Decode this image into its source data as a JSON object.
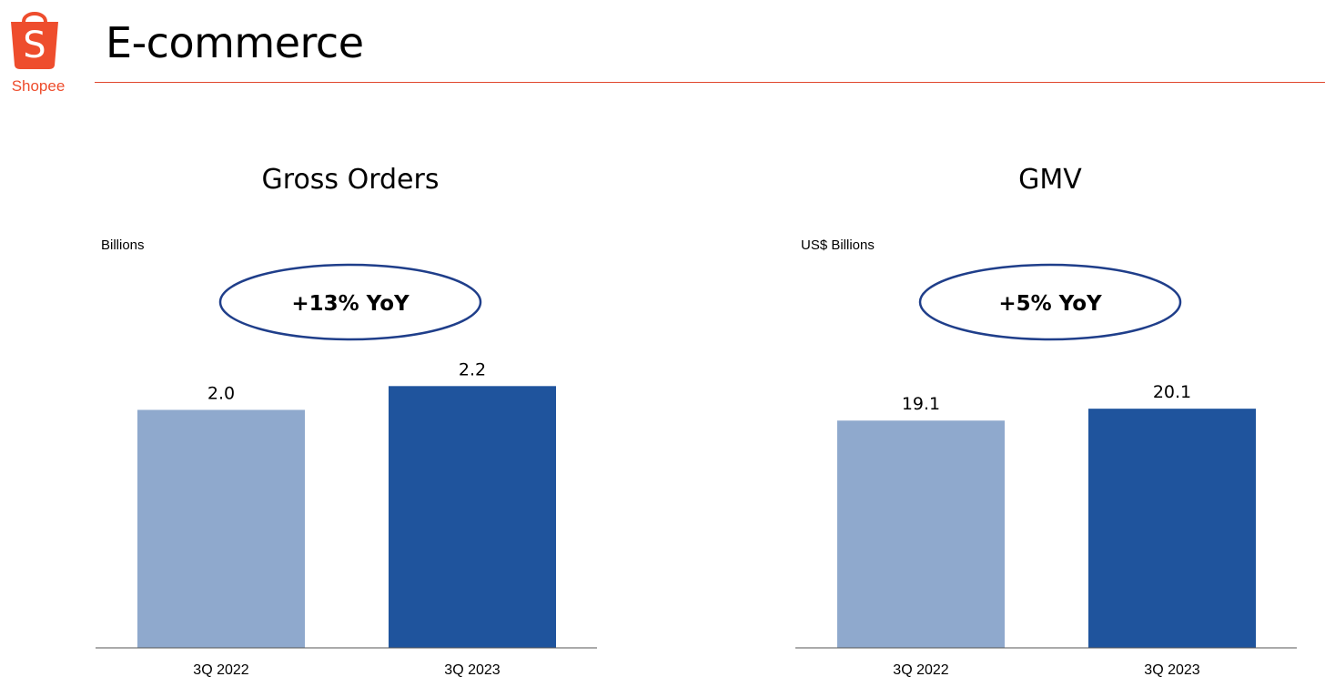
{
  "header": {
    "brand": "Shopee",
    "title": "E-commerce",
    "brand_color": "#EE4D2D",
    "rule_color": "#E0472E",
    "logo_icon": "shopping-bag-icon"
  },
  "chart_data": [
    {
      "type": "bar",
      "title": "Gross Orders",
      "unit_label": "Billions",
      "yoy": "+13% YoY",
      "categories": [
        "3Q 2022",
        "3Q 2023"
      ],
      "values": [
        2.0,
        2.2
      ],
      "value_labels": [
        "2.0",
        "2.2"
      ],
      "colors": [
        "#8FA9CD",
        "#1F549D"
      ],
      "ylim": [
        0,
        2.6
      ],
      "grid": false,
      "legend": "none"
    },
    {
      "type": "bar",
      "title": "GMV",
      "unit_label": "US$ Billions",
      "yoy": "+5% YoY",
      "categories": [
        "3Q 2022",
        "3Q 2023"
      ],
      "values": [
        19.1,
        20.1
      ],
      "value_labels": [
        "19.1",
        "20.1"
      ],
      "colors": [
        "#8FA9CD",
        "#1F549D"
      ],
      "ylim": [
        0,
        26
      ],
      "grid": false,
      "legend": "none"
    }
  ]
}
